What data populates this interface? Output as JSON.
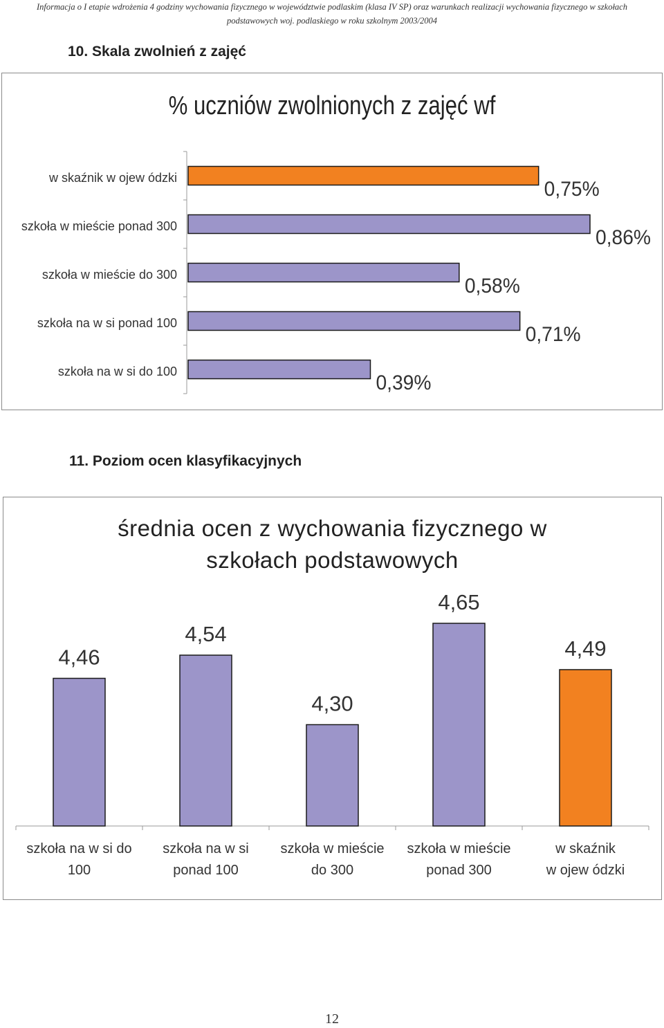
{
  "header": {
    "line1": "Informacja o I etapie wdrożenia 4 godziny wychowania fizycznego w województwie podlaskim (klasa IV SP) oraz warunkach realizacji wychowania fizycznego w szkołach",
    "line2": "podstawowych woj. podlaskiego w roku szkolnym 2003/2004"
  },
  "section10": {
    "title": "10. Skala zwolnień z zajęć"
  },
  "section11": {
    "title": "11. Poziom ocen klasyfikacyjnych"
  },
  "page_number": "12",
  "colors": {
    "purple": "#9c95c9",
    "orange": "#f28120",
    "outline": "#1a1a1a"
  },
  "chart_data": [
    {
      "type": "bar",
      "orientation": "horizontal",
      "title": "% uczniów zwolnionych z zajęć wf",
      "categories": [
        "w skaźnik w ojew ódzki",
        "szkoła w mieście ponad 300",
        "szkoła w mieście do 300",
        "szkoła na w si ponad 100",
        "szkoła na w si do 100"
      ],
      "values": [
        0.75,
        0.86,
        0.58,
        0.71,
        0.39
      ],
      "data_labels": [
        "0,75%",
        "0,86%",
        "0,58%",
        "0,71%",
        "0,39%"
      ],
      "bar_colors": [
        "#f28120",
        "#9c95c9",
        "#9c95c9",
        "#9c95c9",
        "#9c95c9"
      ],
      "xlim": [
        0,
        0.86
      ]
    },
    {
      "type": "bar",
      "orientation": "vertical",
      "title": "średnia ocen z wychowania fizycznego w szkołach podstawowych",
      "title_lines": [
        "średnia ocen z wychowania fizycznego w",
        "szkołach podstawowych"
      ],
      "categories": [
        "szkoła na w si do 100",
        "szkoła na w si ponad 100",
        "szkoła w mieście do 300",
        "szkoła w mieście ponad 300",
        "w skaźnik w ojew ódzki"
      ],
      "category_lines": [
        [
          "szkoła na w si do",
          "100"
        ],
        [
          "szkoła na w si",
          "ponad 100"
        ],
        [
          "szkoła w mieście",
          "do 300"
        ],
        [
          "szkoła w mieście",
          "ponad 300"
        ],
        [
          "w skaźnik",
          "w ojew ódzki"
        ]
      ],
      "values": [
        4.46,
        4.54,
        4.3,
        4.65,
        4.49
      ],
      "data_labels": [
        "4,46",
        "4,54",
        "4,30",
        "4,65",
        "4,49"
      ],
      "bar_colors": [
        "#9c95c9",
        "#9c95c9",
        "#9c95c9",
        "#9c95c9",
        "#f28120"
      ],
      "ylim": [
        3.95,
        4.65
      ]
    }
  ]
}
